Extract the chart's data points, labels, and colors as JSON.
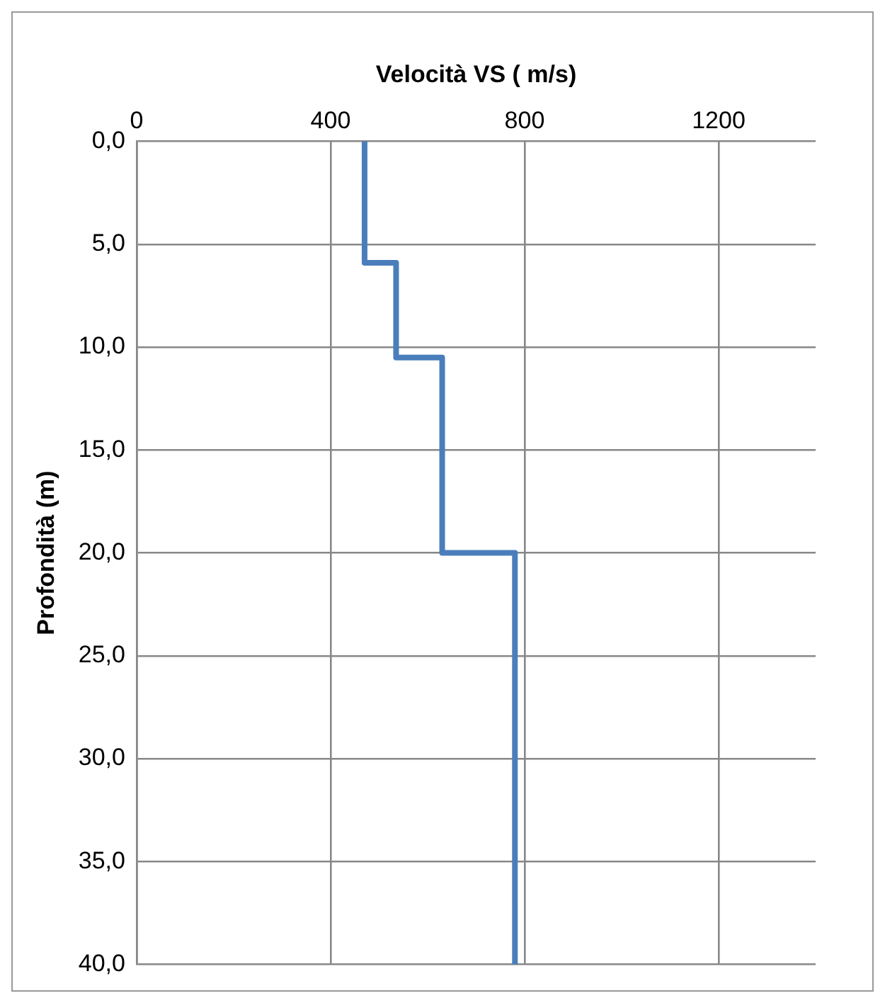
{
  "chart_data": {
    "type": "line",
    "xlabel": "Velocità VS ( m/s)",
    "ylabel": "Profondità (m)",
    "series": [
      {
        "color": "#4a7ebb",
        "x": [
          470,
          470,
          535,
          535,
          630,
          630,
          780,
          780
        ],
        "values": [
          0,
          5.9,
          5.9,
          10.5,
          10.5,
          20,
          20,
          40
        ]
      }
    ],
    "xlim": [
      0,
      1400
    ],
    "xticks": [
      0,
      400,
      800,
      1200
    ],
    "ylim": [
      40,
      0
    ],
    "yticks": [
      {
        "value": 0,
        "label": "0,0"
      },
      {
        "value": 5,
        "label": "5,0"
      },
      {
        "value": 10,
        "label": "10,0"
      },
      {
        "value": 15,
        "label": "15,0"
      },
      {
        "value": 20,
        "label": "20,0"
      },
      {
        "value": 25,
        "label": "25,0"
      },
      {
        "value": 30,
        "label": "30,0"
      },
      {
        "value": 35,
        "label": "35,0"
      },
      {
        "value": 40,
        "label": "40,0"
      }
    ],
    "grid": true,
    "legend": false,
    "marker": "none",
    "line_style": "solid"
  }
}
